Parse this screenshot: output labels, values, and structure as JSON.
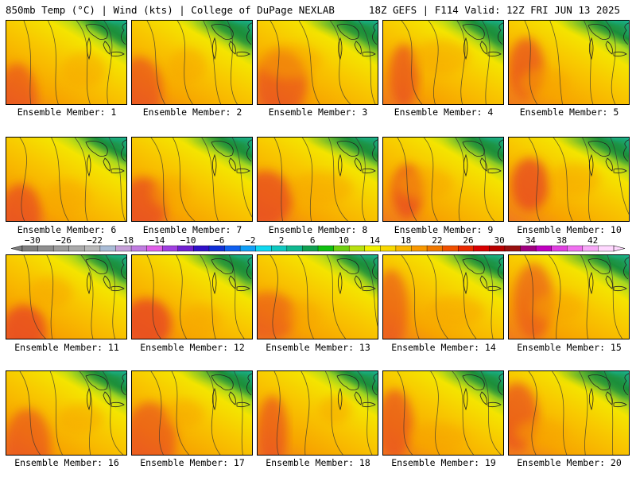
{
  "header": {
    "left_text": "850mb Temp (°C) | Wind (kts) | College of DuPage NEXLAB",
    "right_text": "18Z GEFS | F114 Valid: 12Z FRI JUN 13 2025"
  },
  "panels": [
    {
      "label": "Ensemble Member: 1"
    },
    {
      "label": "Ensemble Member: 2"
    },
    {
      "label": "Ensemble Member: 3"
    },
    {
      "label": "Ensemble Member: 4"
    },
    {
      "label": "Ensemble Member: 5"
    },
    {
      "label": "Ensemble Member: 6"
    },
    {
      "label": "Ensemble Member: 7"
    },
    {
      "label": "Ensemble Member: 8"
    },
    {
      "label": "Ensemble Member: 9"
    },
    {
      "label": "Ensemble Member: 10"
    },
    {
      "label": "Ensemble Member: 11"
    },
    {
      "label": "Ensemble Member: 12"
    },
    {
      "label": "Ensemble Member: 13"
    },
    {
      "label": "Ensemble Member: 14"
    },
    {
      "label": "Ensemble Member: 15"
    },
    {
      "label": "Ensemble Member: 16"
    },
    {
      "label": "Ensemble Member: 17"
    },
    {
      "label": "Ensemble Member: 18"
    },
    {
      "label": "Ensemble Member: 19"
    },
    {
      "label": "Ensemble Member: 20"
    }
  ],
  "colorbar": {
    "labels": [
      "-30",
      "-26",
      "-22",
      "-18",
      "-14",
      "-10",
      "-6",
      "-2",
      "2",
      "6",
      "10",
      "14",
      "18",
      "22",
      "26",
      "30",
      "34",
      "38",
      "42"
    ],
    "colors": [
      "#7f7f7f",
      "#8e8e8e",
      "#9c9c9c",
      "#aaaaaa",
      "#b8b8b8",
      "#a9bcd6",
      "#c6a0d8",
      "#c07ce0",
      "#e060e8",
      "#a040e0",
      "#7020d0",
      "#3010c8",
      "#1030d8",
      "#1060f0",
      "#10a0f8",
      "#10d8f0",
      "#10c8c0",
      "#10b890",
      "#10a050",
      "#10c010",
      "#70d010",
      "#b8e010",
      "#f0f000",
      "#f8d800",
      "#f8b800",
      "#f89800",
      "#f07800",
      "#f05000",
      "#e82800",
      "#d80000",
      "#b80000",
      "#981010",
      "#a00080",
      "#c000c0",
      "#e040e0",
      "#f070f0",
      "#f8a8f8",
      "#ffd8ff"
    ],
    "palette": {
      "cold_green": "#1a8f3a",
      "teal": "#18c8c0",
      "light_green": "#a8d820",
      "yellow": "#f4e400",
      "yellow_orange": "#f8c800",
      "orange": "#f7a400",
      "dark_orange": "#f07820",
      "red_orange": "#e84820"
    }
  }
}
